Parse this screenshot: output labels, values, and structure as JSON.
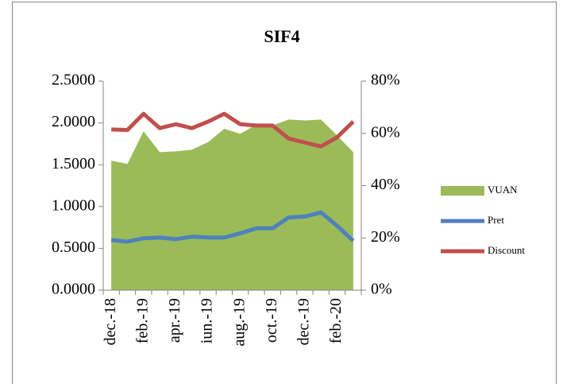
{
  "chart_data": {
    "type": "line",
    "title": "SIF4",
    "categories": [
      "dec.-18",
      null,
      "feb.-19",
      null,
      "apr.-19",
      null,
      "iun.-19",
      null,
      "aug.-19",
      null,
      "oct.-19",
      null,
      "dec.-19",
      null,
      "feb.-20",
      null
    ],
    "series": [
      {
        "name": "VUAN",
        "type": "area",
        "color": "#9bbb59",
        "values": [
          1.55,
          1.51,
          1.9,
          1.65,
          1.66,
          1.68,
          1.77,
          1.93,
          1.87,
          1.98,
          1.97,
          2.04,
          2.03,
          2.04,
          1.85,
          1.65
        ]
      },
      {
        "name": "Pret",
        "type": "line",
        "color": "#4f81bd",
        "values": [
          0.6,
          0.58,
          0.62,
          0.63,
          0.61,
          0.64,
          0.63,
          0.63,
          0.68,
          0.74,
          0.74,
          0.87,
          0.88,
          0.93,
          0.77,
          0.59
        ]
      },
      {
        "name": "Discount",
        "type": "line",
        "axis": "y2",
        "color": "#c0504d",
        "values": [
          61.5,
          61.3,
          67.5,
          62,
          63.5,
          62,
          64.5,
          67.5,
          63.5,
          63,
          63,
          58,
          56.5,
          55,
          58.5,
          64.5
        ]
      }
    ],
    "ylim": [
      0,
      2.5
    ],
    "yticks": [
      {
        "value": 0,
        "label": "0.0000"
      },
      {
        "value": 0.5,
        "label": "0.5000"
      },
      {
        "value": 1,
        "label": "1.0000"
      },
      {
        "value": 1.5,
        "label": "1.5000"
      },
      {
        "value": 2,
        "label": "2.0000"
      },
      {
        "value": 2.5,
        "label": "2.5000"
      }
    ],
    "y2lim": [
      0,
      80
    ],
    "y2ticks": [
      {
        "value": 0,
        "label": "0%"
      },
      {
        "value": 20,
        "label": "20%"
      },
      {
        "value": 40,
        "label": "40%"
      },
      {
        "value": 60,
        "label": "60%"
      },
      {
        "value": 80,
        "label": "80%"
      }
    ],
    "legend": "right"
  }
}
